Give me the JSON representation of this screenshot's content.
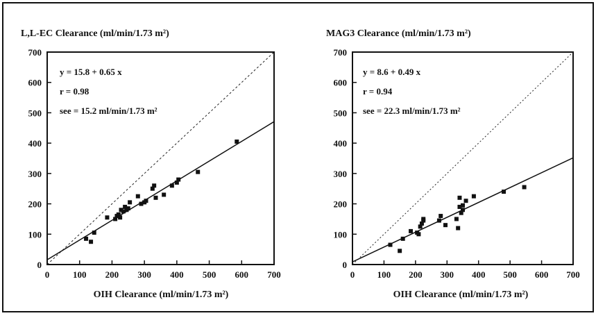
{
  "chart_data": [
    {
      "type": "scatter",
      "title": "L,L-EC Clearance (ml/min/1.73 m²)",
      "xlabel": "OIH Clearance (ml/min/1.73 m²)",
      "ylabel": "",
      "xlim": [
        0,
        700
      ],
      "ylim": [
        0,
        700
      ],
      "xticks": [
        0,
        100,
        200,
        300,
        400,
        500,
        600,
        700
      ],
      "yticks": [
        0,
        100,
        200,
        300,
        400,
        500,
        600,
        700
      ],
      "annotations": [
        "y = 15.8 + 0.65 x",
        "r = 0.98",
        "see = 15.2 ml/min/1.73 m²"
      ],
      "regression": {
        "intercept": 15.8,
        "slope": 0.65
      },
      "identity_line": true,
      "points": [
        [
          120,
          85
        ],
        [
          135,
          75
        ],
        [
          145,
          105
        ],
        [
          185,
          155
        ],
        [
          210,
          150
        ],
        [
          215,
          160
        ],
        [
          220,
          165
        ],
        [
          225,
          155
        ],
        [
          228,
          180
        ],
        [
          235,
          175
        ],
        [
          240,
          190
        ],
        [
          245,
          180
        ],
        [
          250,
          185
        ],
        [
          255,
          205
        ],
        [
          280,
          225
        ],
        [
          290,
          200
        ],
        [
          300,
          205
        ],
        [
          305,
          210
        ],
        [
          325,
          250
        ],
        [
          330,
          260
        ],
        [
          335,
          220
        ],
        [
          360,
          230
        ],
        [
          385,
          260
        ],
        [
          400,
          270
        ],
        [
          405,
          280
        ],
        [
          465,
          305
        ],
        [
          585,
          405
        ]
      ]
    },
    {
      "type": "scatter",
      "title": "MAG3 Clearance (ml/min/1.73 m²)",
      "xlabel": "OIH Clearance (ml/min/1.73 m²)",
      "ylabel": "",
      "xlim": [
        0,
        700
      ],
      "ylim": [
        0,
        700
      ],
      "xticks": [
        0,
        100,
        200,
        300,
        400,
        500,
        600,
        700
      ],
      "yticks": [
        0,
        100,
        200,
        300,
        400,
        500,
        600,
        700
      ],
      "annotations": [
        "y = 8.6 + 0.49 x",
        "r = 0.94",
        "see = 22.3 ml/min/1.73 m²"
      ],
      "regression": {
        "intercept": 8.6,
        "slope": 0.49
      },
      "identity_line": true,
      "points": [
        [
          120,
          65
        ],
        [
          150,
          45
        ],
        [
          160,
          85
        ],
        [
          185,
          110
        ],
        [
          205,
          105
        ],
        [
          210,
          100
        ],
        [
          215,
          125
        ],
        [
          220,
          135
        ],
        [
          225,
          150
        ],
        [
          225,
          145
        ],
        [
          275,
          145
        ],
        [
          280,
          160
        ],
        [
          295,
          130
        ],
        [
          330,
          150
        ],
        [
          335,
          120
        ],
        [
          340,
          190
        ],
        [
          340,
          220
        ],
        [
          345,
          170
        ],
        [
          350,
          180
        ],
        [
          350,
          195
        ],
        [
          360,
          210
        ],
        [
          385,
          225
        ],
        [
          480,
          240
        ],
        [
          545,
          255
        ]
      ]
    }
  ]
}
